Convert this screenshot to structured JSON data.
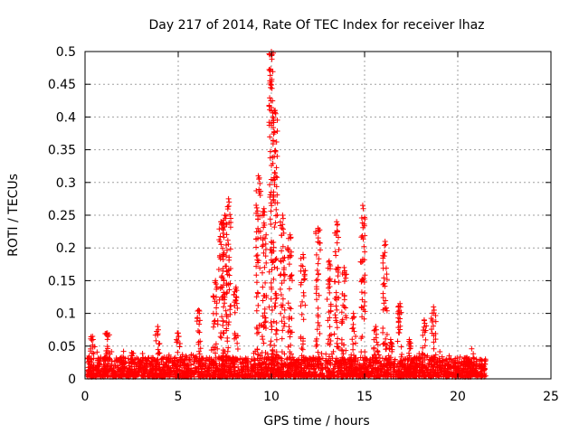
{
  "chart_data": {
    "type": "scatter",
    "title": "Day 217 of 2014, Rate Of TEC Index for receiver lhaz",
    "xlabel": "GPS time / hours",
    "ylabel": "ROTI / TECUs",
    "xlim": [
      0,
      25
    ],
    "ylim": [
      0,
      0.5
    ],
    "xticks": [
      0,
      5,
      10,
      15,
      20,
      25
    ],
    "xtick_labels": [
      "0",
      "5",
      "10",
      "15",
      "20",
      "25"
    ],
    "yticks": [
      0,
      0.05,
      0.1,
      0.15,
      0.2,
      0.25,
      0.3,
      0.35,
      0.4,
      0.45,
      0.5
    ],
    "ytick_labels": [
      "0",
      "0.05",
      "0.1",
      "0.15",
      "0.2",
      "0.25",
      "0.3",
      "0.35",
      "0.4",
      "0.45",
      "0.5"
    ],
    "grid": true,
    "marker": "+",
    "color": "#ff0000",
    "baseline": {
      "x_start": 0.1,
      "x_end": 21.5,
      "typical_max": 0.03
    },
    "spikes": [
      {
        "x": 0.4,
        "peak": 0.065
      },
      {
        "x": 1.2,
        "peak": 0.07
      },
      {
        "x": 2.5,
        "peak": 0.04
      },
      {
        "x": 3.9,
        "peak": 0.08
      },
      {
        "x": 5.0,
        "peak": 0.07
      },
      {
        "x": 6.1,
        "peak": 0.105
      },
      {
        "x": 7.0,
        "peak": 0.15
      },
      {
        "x": 7.3,
        "peak": 0.24
      },
      {
        "x": 7.5,
        "peak": 0.25
      },
      {
        "x": 7.7,
        "peak": 0.275
      },
      {
        "x": 8.1,
        "peak": 0.14
      },
      {
        "x": 9.3,
        "peak": 0.31
      },
      {
        "x": 9.6,
        "peak": 0.26
      },
      {
        "x": 10.0,
        "peak": 0.5
      },
      {
        "x": 10.2,
        "peak": 0.41
      },
      {
        "x": 10.6,
        "peak": 0.25
      },
      {
        "x": 11.0,
        "peak": 0.22
      },
      {
        "x": 11.7,
        "peak": 0.19
      },
      {
        "x": 12.5,
        "peak": 0.23
      },
      {
        "x": 13.1,
        "peak": 0.18
      },
      {
        "x": 13.5,
        "peak": 0.24
      },
      {
        "x": 13.9,
        "peak": 0.17
      },
      {
        "x": 14.4,
        "peak": 0.1
      },
      {
        "x": 14.9,
        "peak": 0.265
      },
      {
        "x": 15.6,
        "peak": 0.08
      },
      {
        "x": 16.1,
        "peak": 0.21
      },
      {
        "x": 16.4,
        "peak": 0.06
      },
      {
        "x": 16.9,
        "peak": 0.115
      },
      {
        "x": 17.4,
        "peak": 0.06
      },
      {
        "x": 18.2,
        "peak": 0.09
      },
      {
        "x": 18.7,
        "peak": 0.11
      },
      {
        "x": 20.5,
        "peak": 0.025
      },
      {
        "x": 21.3,
        "peak": 0.02
      }
    ]
  }
}
